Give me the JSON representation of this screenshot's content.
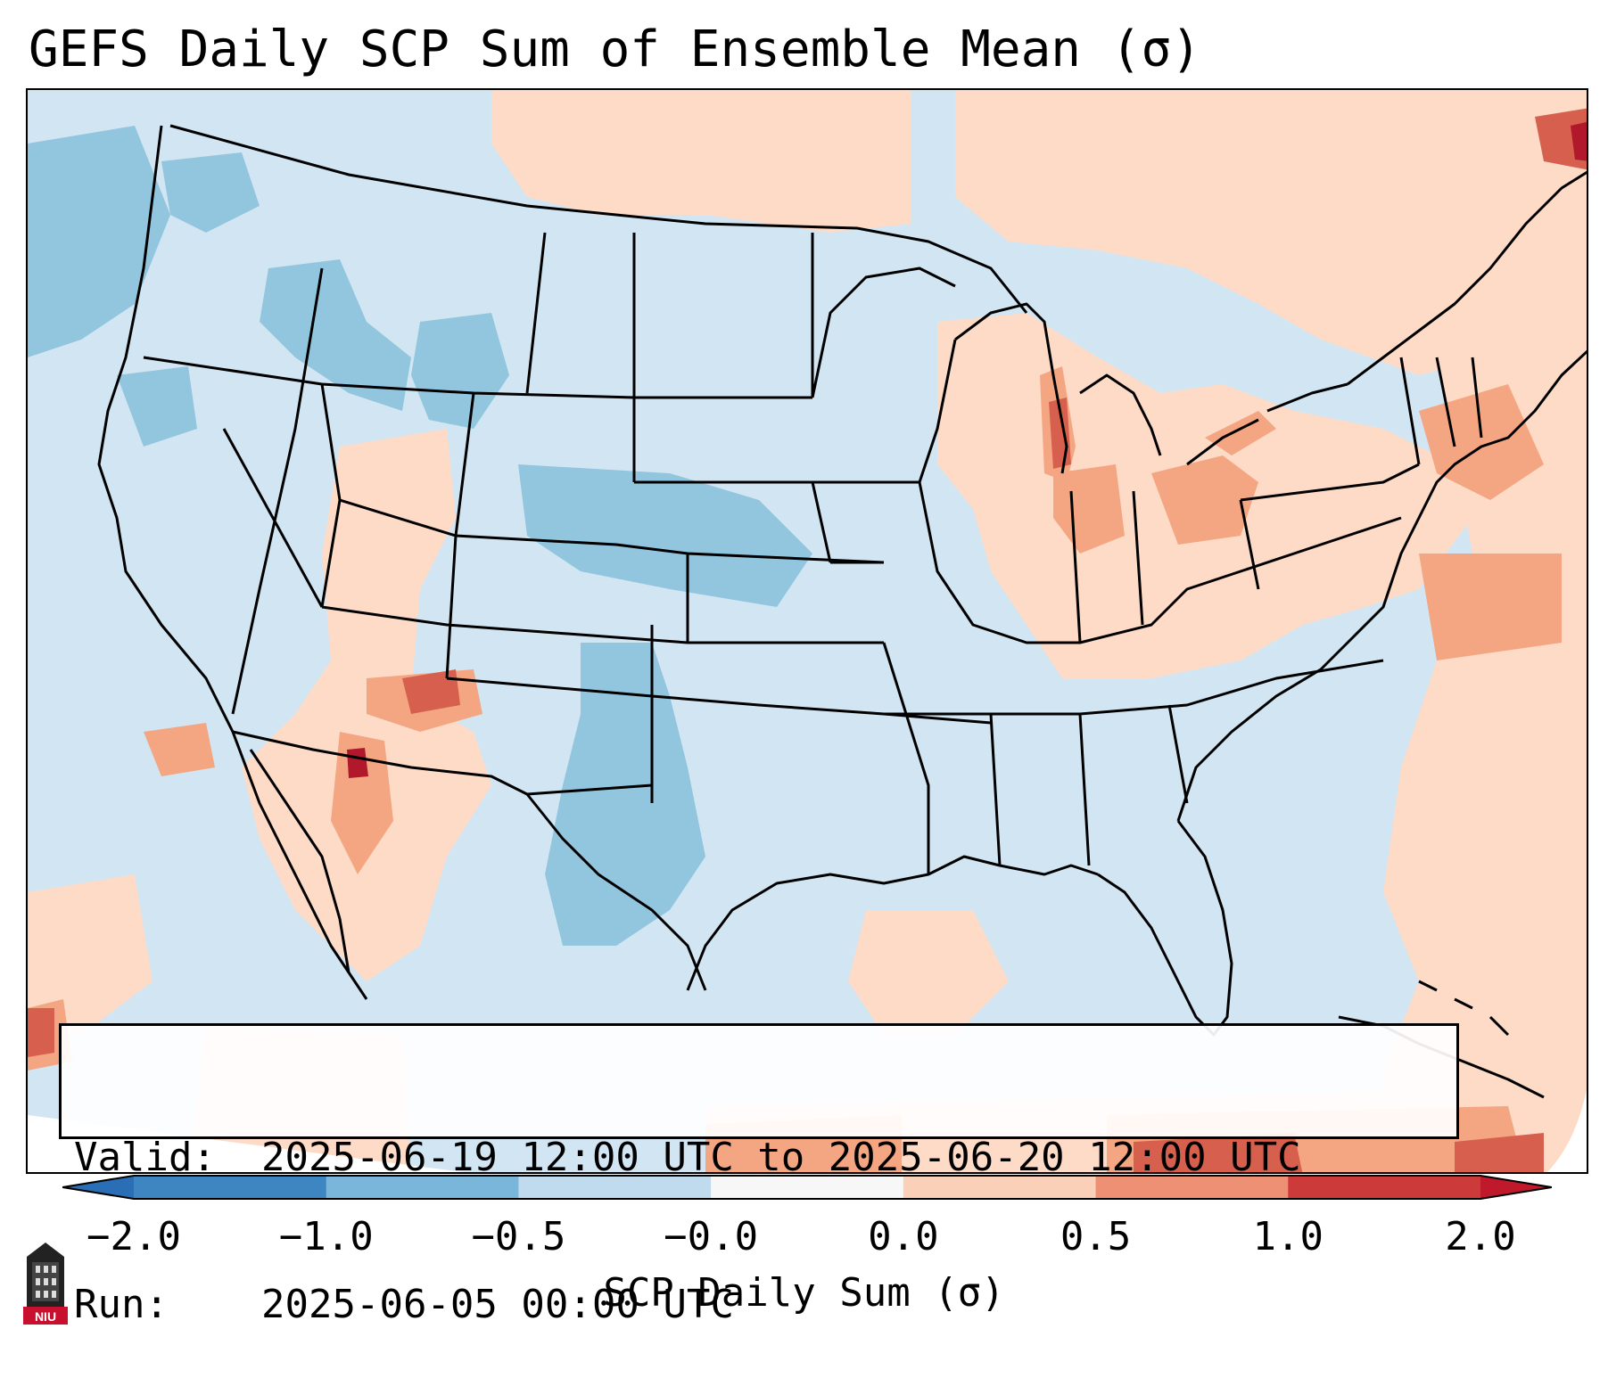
{
  "title": "GEFS Daily SCP Sum of Ensemble Mean (σ)",
  "info": {
    "valid_label": "Valid:",
    "valid_value": "2025-06-19 12:00 UTC to 2025-06-20 12:00 UTC",
    "run_label": "Run:",
    "run_value": "2025-06-05 00:00 UTC"
  },
  "colorbar": {
    "label": "SCP Daily Sum (σ)",
    "ticks": [
      "−2.0",
      "−1.0",
      "−0.5",
      "−0.0",
      "0.0",
      "0.5",
      "1.0",
      "2.0"
    ],
    "bin_colors": [
      "#3d86c1",
      "#79b6da",
      "#c0dbed",
      "#f7f7f7",
      "#fbd0b9",
      "#ee9073",
      "#cd3a3a"
    ],
    "extend_low_color": "#2a6eb5",
    "extend_high_color": "#c0192c"
  },
  "map": {
    "background_color": "#d2e5f2",
    "ocean_outside_color": "#ffffff",
    "legend_colors": {
      "neg_strong": "#92c5de",
      "neg_light": "#d1e5f0",
      "pos_light": "#fddbc7",
      "pos_mid": "#f4a582",
      "pos_strong": "#d6604d",
      "pos_max": "#b2182b"
    }
  },
  "logo": {
    "text": "NIU",
    "icon": "niu-logo-icon"
  }
}
